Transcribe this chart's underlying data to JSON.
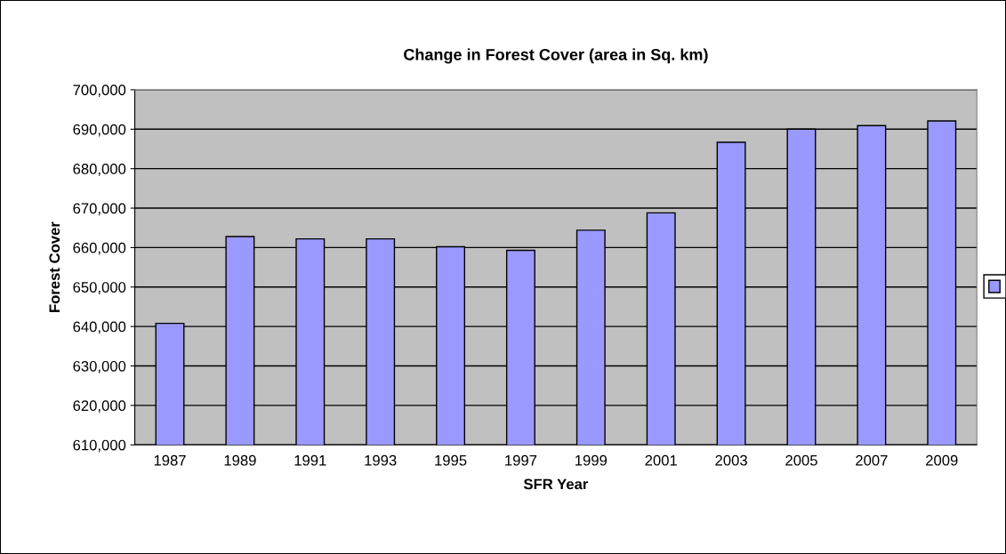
{
  "chart_data": {
    "type": "bar",
    "title": "Change in Forest Cover (area in Sq. km)",
    "xlabel": "SFR Year",
    "ylabel": "Forest Cover",
    "categories": [
      "1987",
      "1989",
      "1991",
      "1993",
      "1995",
      "1997",
      "1999",
      "2001",
      "2003",
      "2005",
      "2007",
      "2009"
    ],
    "values": [
      640800,
      662800,
      662200,
      662200,
      660200,
      659300,
      664400,
      668800,
      686700,
      690000,
      690900,
      692100
    ],
    "color": "#9999ff",
    "ylim": [
      610000,
      700000
    ],
    "yticks": [
      {
        "value": 610000,
        "label": "610,000"
      },
      {
        "value": 620000,
        "label": "620,000"
      },
      {
        "value": 630000,
        "label": "630,000"
      },
      {
        "value": 640000,
        "label": "640,000"
      },
      {
        "value": 650000,
        "label": "650,000"
      },
      {
        "value": 660000,
        "label": "660,000"
      },
      {
        "value": 670000,
        "label": "670,000"
      },
      {
        "value": 680000,
        "label": "680,000"
      },
      {
        "value": 690000,
        "label": "690,000"
      },
      {
        "value": 700000,
        "label": "700,000"
      }
    ],
    "grid": "y"
  }
}
